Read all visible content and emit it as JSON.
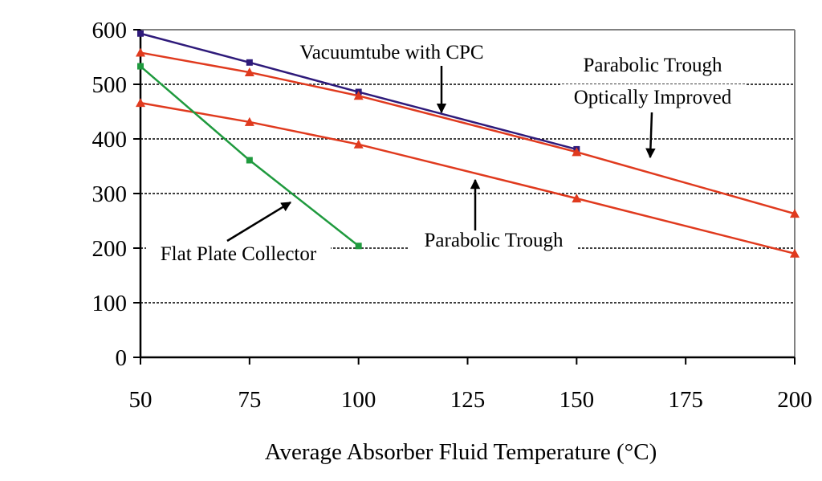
{
  "chart_data": {
    "type": "line",
    "title": "",
    "xlabel": "Average Absorber Fluid Temperature (°C)",
    "ylabel": "",
    "xlim": [
      50,
      200
    ],
    "ylim": [
      0,
      600
    ],
    "xticks": [
      "50",
      "75",
      "100",
      "125",
      "150",
      "175",
      "200"
    ],
    "yticks": [
      "0",
      "100",
      "200",
      "300",
      "400",
      "500",
      "600"
    ],
    "grid": "horizontal dotted",
    "series": [
      {
        "name": "Vacuumtube with CPC",
        "color": "#2e1a7a",
        "marker": "square",
        "x": [
          50,
          75,
          100,
          150
        ],
        "y": [
          593,
          540,
          486,
          381
        ]
      },
      {
        "name": "Parabolic Trough Optically Improved",
        "color": "#e03a1e",
        "marker": "triangle",
        "x": [
          50,
          75,
          100,
          150,
          200
        ],
        "y": [
          558,
          522,
          479,
          376,
          263
        ]
      },
      {
        "name": "Parabolic Trough",
        "color": "#e03a1e",
        "marker": "triangle",
        "x": [
          50,
          75,
          100,
          150,
          200
        ],
        "y": [
          466,
          431,
          390,
          291,
          190
        ]
      },
      {
        "name": "Flat Plate Collector",
        "color": "#1f9a3e",
        "marker": "square",
        "x": [
          50,
          75,
          100
        ],
        "y": [
          533,
          361,
          204
        ]
      }
    ],
    "annotations": [
      {
        "lines": [
          "Vacuumtube with CPC"
        ]
      },
      {
        "lines": [
          "Parabolic Trough",
          "Optically Improved"
        ]
      },
      {
        "lines": [
          "Parabolic Trough"
        ]
      },
      {
        "lines": [
          "Flat Plate Collector"
        ]
      }
    ]
  }
}
